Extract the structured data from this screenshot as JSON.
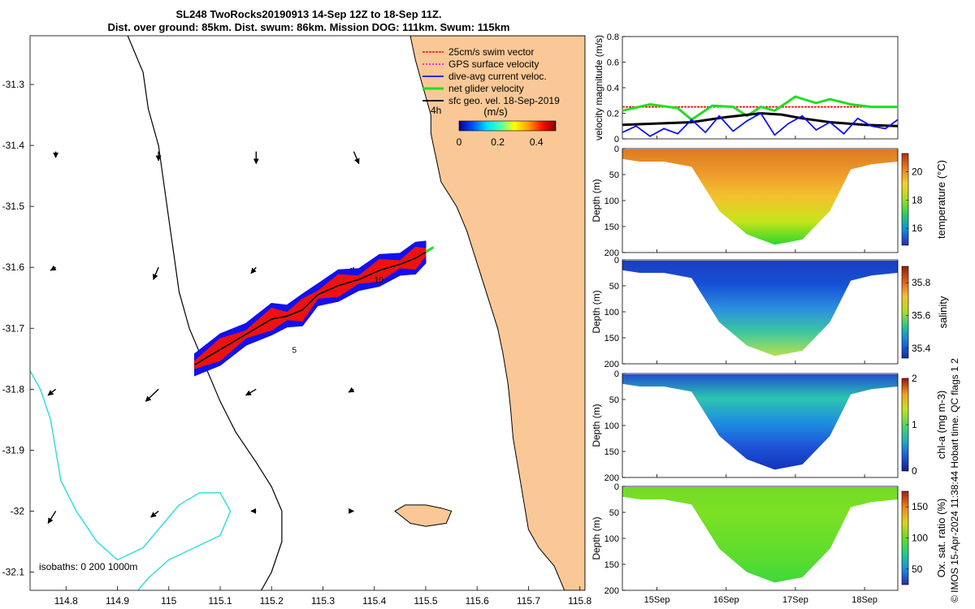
{
  "title": {
    "line1": "SL248 TwoRocks20190913 14-Sep 12Z to 18-Sep 11Z.",
    "line2": "Dist. over ground: 85km. Dist. swum: 86km. Mission DOG: 111km. Swum: 115km"
  },
  "side_note": "© IMOS 15-Apr-2024 11:38:44 Hobart time. QC flags 1  2",
  "colors": {
    "land": "#F9C896",
    "coast": "#000000",
    "isobath_200": "#000000",
    "isobath_1000": "#33DDDD",
    "track_red": "#EE1111",
    "track_blue": "#1111EE",
    "vec_black": "#000000",
    "gps": "#EE00EE",
    "net": "#22DD22"
  },
  "chart_data": [
    {
      "id": "map",
      "type": "scatter",
      "title": "",
      "xlabel": "",
      "ylabel": "",
      "xlim": [
        114.73,
        115.81
      ],
      "ylim": [
        -32.13,
        -31.22
      ],
      "xticks": [
        114.8,
        114.9,
        115,
        115.1,
        115.2,
        115.3,
        115.4,
        115.5,
        115.6,
        115.7,
        115.8
      ],
      "xtick_labels": [
        "114.8",
        "114.9",
        "115",
        "115.1",
        "115.2",
        "115.3",
        "115.4",
        "115.5",
        "115.6",
        "115.7",
        "115.8"
      ],
      "yticks": [
        -31.3,
        -31.4,
        -31.5,
        -31.6,
        -31.7,
        -31.8,
        -31.9,
        -32.0,
        -32.1
      ],
      "ytick_labels": [
        "-31.3",
        "-31.4",
        "-31.5",
        "-31.6",
        "-31.7",
        "-31.8",
        "-31.9",
        "-32",
        "-32.1"
      ],
      "legend": {
        "position": "top-right",
        "entries": [
          "25cm/s swim vector",
          "GPS surface velocity",
          "dive-avg current veloc.",
          "net glider velocity",
          "sfc geo. vel. 18-Sep-2019"
        ]
      },
      "scale_label": "4h",
      "colorbar": {
        "label": "(m/s)",
        "ticks": [
          0,
          0.2,
          0.4
        ],
        "tick_labels": [
          "0",
          "0.2",
          "0.4"
        ],
        "range": [
          0,
          0.5
        ]
      },
      "isobaths_label": "isobaths: 0   200  1000m",
      "track_labels": [
        "5",
        "10"
      ],
      "track": [
        [
          115.05,
          -31.76
        ],
        [
          115.1,
          -31.735
        ],
        [
          115.15,
          -31.71
        ],
        [
          115.2,
          -31.685
        ],
        [
          115.23,
          -31.68
        ],
        [
          115.26,
          -31.67
        ],
        [
          115.29,
          -31.645
        ],
        [
          115.33,
          -31.63
        ],
        [
          115.37,
          -31.62
        ],
        [
          115.41,
          -31.605
        ],
        [
          115.45,
          -31.595
        ],
        [
          115.48,
          -31.585
        ],
        [
          115.5,
          -31.575
        ]
      ],
      "coast": [
        [
          115.81,
          -31.22
        ],
        [
          115.47,
          -31.22
        ],
        [
          115.48,
          -31.26
        ],
        [
          115.49,
          -31.29
        ],
        [
          115.5,
          -31.32
        ],
        [
          115.51,
          -31.35
        ],
        [
          115.51,
          -31.38
        ],
        [
          115.515,
          -31.4
        ],
        [
          115.52,
          -31.42
        ],
        [
          115.53,
          -31.46
        ],
        [
          115.56,
          -31.5
        ],
        [
          115.58,
          -31.54
        ],
        [
          115.595,
          -31.58
        ],
        [
          115.61,
          -31.62
        ],
        [
          115.625,
          -31.66
        ],
        [
          115.64,
          -31.7
        ],
        [
          115.65,
          -31.74
        ],
        [
          115.66,
          -31.79
        ],
        [
          115.665,
          -31.83
        ],
        [
          115.67,
          -31.88
        ],
        [
          115.68,
          -31.93
        ],
        [
          115.69,
          -31.98
        ],
        [
          115.7,
          -32.03
        ],
        [
          115.72,
          -32.06
        ],
        [
          115.75,
          -32.09
        ],
        [
          115.77,
          -32.13
        ],
        [
          115.81,
          -32.13
        ]
      ],
      "isobath_200": [
        [
          114.92,
          -31.22
        ],
        [
          114.95,
          -31.28
        ],
        [
          114.96,
          -31.34
        ],
        [
          114.98,
          -31.4
        ],
        [
          114.99,
          -31.46
        ],
        [
          115.0,
          -31.52
        ],
        [
          115.01,
          -31.58
        ],
        [
          115.02,
          -31.64
        ],
        [
          115.04,
          -31.7
        ],
        [
          115.07,
          -31.76
        ],
        [
          115.1,
          -31.82
        ],
        [
          115.13,
          -31.87
        ],
        [
          115.17,
          -31.92
        ],
        [
          115.2,
          -31.96
        ],
        [
          115.22,
          -32.0
        ],
        [
          115.22,
          -32.05
        ],
        [
          115.2,
          -32.1
        ],
        [
          115.18,
          -32.13
        ]
      ],
      "isobath_1000": [
        [
          114.73,
          -31.77
        ],
        [
          114.75,
          -31.8
        ],
        [
          114.77,
          -31.85
        ],
        [
          114.78,
          -31.9
        ],
        [
          114.79,
          -31.95
        ],
        [
          114.82,
          -32.0
        ],
        [
          114.86,
          -32.05
        ],
        [
          114.9,
          -32.08
        ],
        [
          114.95,
          -32.06
        ],
        [
          114.98,
          -32.03
        ],
        [
          115.02,
          -31.99
        ],
        [
          115.06,
          -31.97
        ],
        [
          115.1,
          -31.97
        ],
        [
          115.12,
          -32.0
        ],
        [
          115.1,
          -32.04
        ],
        [
          115.05,
          -32.06
        ],
        [
          115.0,
          -32.08
        ],
        [
          114.96,
          -32.11
        ],
        [
          114.94,
          -32.13
        ]
      ],
      "island": [
        [
          115.44,
          -32.0
        ],
        [
          115.46,
          -31.99
        ],
        [
          115.5,
          -31.99
        ],
        [
          115.53,
          -31.995
        ],
        [
          115.55,
          -32.0
        ],
        [
          115.54,
          -32.02
        ],
        [
          115.5,
          -32.025
        ],
        [
          115.47,
          -32.02
        ]
      ],
      "geo_vectors": [
        [
          114.78,
          -31.41,
          0.0,
          -0.01
        ],
        [
          114.98,
          -31.41,
          0.0,
          -0.015
        ],
        [
          115.17,
          -31.41,
          0.0,
          -0.02
        ],
        [
          115.36,
          -31.41,
          0.01,
          -0.02
        ],
        [
          114.78,
          -31.6,
          -0.01,
          -0.005
        ],
        [
          114.98,
          -31.6,
          -0.01,
          -0.02
        ],
        [
          115.17,
          -31.6,
          -0.01,
          -0.01
        ],
        [
          115.36,
          -31.6,
          -0.005,
          -0.01
        ],
        [
          114.78,
          -31.8,
          -0.015,
          -0.01
        ],
        [
          114.98,
          -31.8,
          -0.025,
          -0.02
        ],
        [
          115.17,
          -31.8,
          -0.02,
          -0.01
        ],
        [
          115.36,
          -31.8,
          -0.01,
          -0.005
        ],
        [
          114.78,
          -32.0,
          -0.015,
          -0.02
        ],
        [
          114.98,
          -32.0,
          -0.015,
          -0.01
        ],
        [
          115.17,
          -32.0,
          -0.01,
          0.0
        ],
        [
          115.36,
          -32.0,
          0.0,
          0.0
        ]
      ]
    },
    {
      "id": "velocity",
      "type": "line",
      "ylabel": "velocity magnitude (m/s)",
      "xlim": [
        0,
        3.98
      ],
      "ylim": [
        0,
        0.8
      ],
      "yticks": [
        0,
        0.2,
        0.4,
        0.6,
        0.8
      ],
      "ytick_labels": [
        "0",
        "0.2",
        "0.4",
        "0.6",
        "0.8"
      ],
      "series": [
        {
          "name": "25cm/s swim vector",
          "color": "#EE1111",
          "x": [
            0,
            3.98
          ],
          "values": [
            0.25,
            0.25
          ]
        },
        {
          "name": "net glider velocity",
          "color": "#22DD22",
          "x": [
            0,
            0.4,
            0.8,
            1.0,
            1.3,
            1.6,
            1.8,
            2.0,
            2.2,
            2.5,
            2.8,
            3.0,
            3.3,
            3.6,
            3.98
          ],
          "values": [
            0.22,
            0.27,
            0.24,
            0.15,
            0.26,
            0.25,
            0.18,
            0.25,
            0.22,
            0.33,
            0.28,
            0.31,
            0.27,
            0.25,
            0.25
          ]
        },
        {
          "name": "sfc geo. vel. 18-Sep-2019",
          "color": "#000000",
          "x": [
            0,
            0.5,
            1.0,
            1.5,
            2.0,
            2.3,
            2.6,
            3.0,
            3.5,
            3.98
          ],
          "values": [
            0.11,
            0.12,
            0.13,
            0.17,
            0.2,
            0.19,
            0.16,
            0.13,
            0.11,
            0.1
          ]
        },
        {
          "name": "dive-avg current veloc.",
          "color": "#1111EE",
          "x": [
            0,
            0.2,
            0.4,
            0.6,
            0.8,
            1.0,
            1.2,
            1.4,
            1.6,
            1.8,
            2.0,
            2.2,
            2.4,
            2.6,
            2.8,
            3.0,
            3.2,
            3.4,
            3.6,
            3.8,
            3.98
          ],
          "values": [
            0.05,
            0.1,
            0.02,
            0.08,
            0.04,
            0.15,
            0.05,
            0.18,
            0.06,
            0.14,
            0.2,
            0.03,
            0.12,
            0.18,
            0.07,
            0.13,
            0.04,
            0.16,
            0.1,
            0.08,
            0.15
          ]
        }
      ]
    },
    {
      "id": "temperature",
      "type": "heatmap",
      "ylabel": "Depth (m)",
      "cbar_label": "temperature (°C)",
      "ylim": [
        0,
        200
      ],
      "yticks": [
        0,
        50,
        100,
        150,
        200
      ],
      "ytick_labels": [
        "0",
        "50",
        "100",
        "150",
        "200"
      ],
      "cbar_ticks": [
        16,
        18,
        20
      ],
      "cbar_range": [
        14.8,
        21.3
      ],
      "colors_bottom_to_top": [
        "#2AD82A",
        "#C9E31C",
        "#F4C22E",
        "#EE9A2C",
        "#DD7A22"
      ]
    },
    {
      "id": "salinity",
      "type": "heatmap",
      "ylabel": "Depth (m)",
      "cbar_label": "salinity",
      "ylim": [
        0,
        200
      ],
      "yticks": [
        0,
        50,
        100,
        150,
        200
      ],
      "ytick_labels": [
        "0",
        "50",
        "100",
        "150",
        "200"
      ],
      "cbar_ticks": [
        35.4,
        35.6,
        35.8
      ],
      "cbar_range": [
        35.34,
        35.9
      ],
      "colors_bottom_to_top": [
        "#B8E04A",
        "#3BC7A0",
        "#2B8EE0",
        "#1650D6",
        "#1B3FC0"
      ]
    },
    {
      "id": "chla",
      "type": "heatmap",
      "ylabel": "Depth (m)",
      "cbar_label": "chl-a (mg m-3)",
      "ylim": [
        0,
        200
      ],
      "yticks": [
        0,
        50,
        100,
        150,
        200
      ],
      "ytick_labels": [
        "0",
        "50",
        "100",
        "150",
        "200"
      ],
      "cbar_ticks": [
        0,
        1,
        2
      ],
      "cbar_range": [
        0,
        2
      ],
      "colors_bottom_to_top": [
        "#1133BB",
        "#1E55D8",
        "#1E8FE0",
        "#2DC4B0",
        "#1E50D0"
      ]
    },
    {
      "id": "oxygen",
      "type": "heatmap",
      "ylabel": "Depth (m)",
      "cbar_label": "Ox. sat. ratio (%)",
      "ylim": [
        0,
        200
      ],
      "yticks": [
        0,
        50,
        100,
        150,
        200
      ],
      "ytick_labels": [
        "0",
        "50",
        "100",
        "150",
        "200"
      ],
      "cbar_ticks": [
        50,
        100,
        150
      ],
      "cbar_range": [
        25,
        175
      ],
      "colors_bottom_to_top": [
        "#3FD83A",
        "#5ADC30",
        "#6CDE28",
        "#7CE024",
        "#70DC28"
      ],
      "xticks": [
        0.5,
        1.5,
        2.5,
        3.5
      ],
      "xtick_labels": [
        "15Sep",
        "16Sep",
        "17Sep",
        "18Sep"
      ],
      "xlim": [
        0,
        3.98
      ]
    }
  ]
}
